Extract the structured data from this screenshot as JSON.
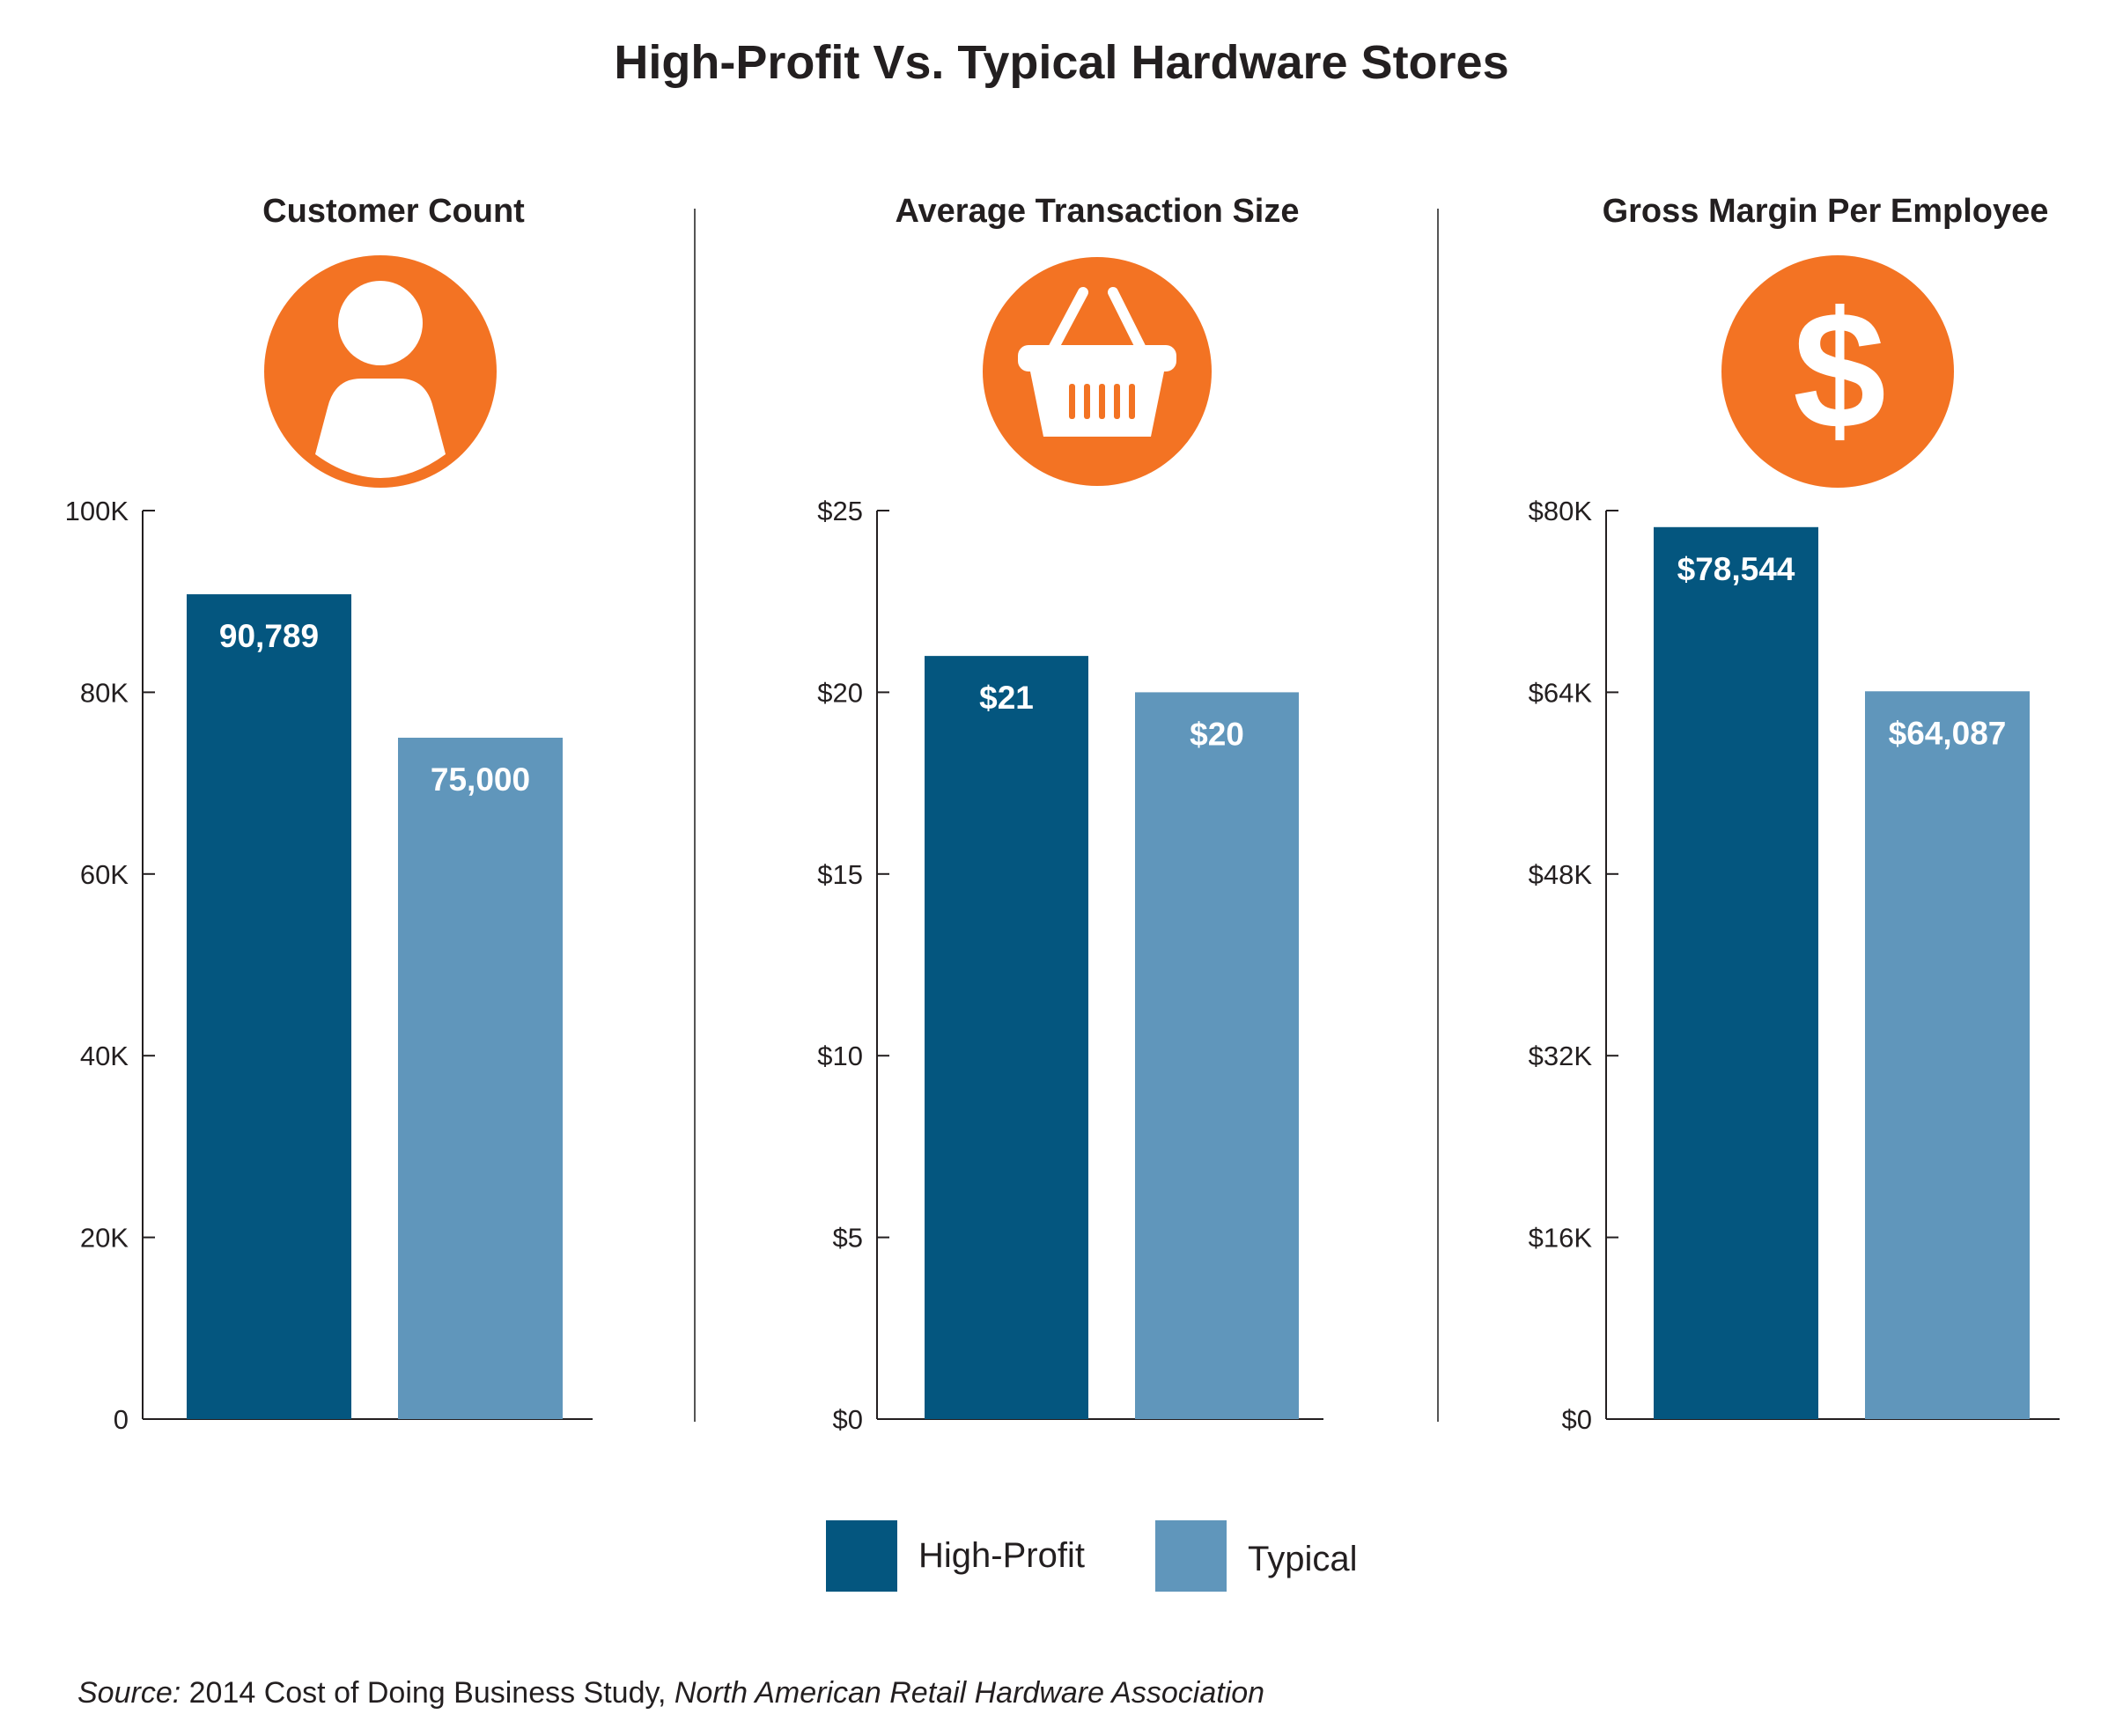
{
  "title": "High-Profit Vs. Typical Hardware Stores",
  "colors": {
    "high_profit": "#04567f",
    "typical": "#6096bb",
    "icon": "#f37323",
    "axis": "#231f20"
  },
  "legend": [
    {
      "key": "high_profit",
      "label": "High-Profit"
    },
    {
      "key": "typical",
      "label": "Typical"
    }
  ],
  "source": {
    "prefix": "Source:",
    "text": " 2014 Cost of Doing Business Study, ",
    "organization": "North American Retail Hardware Association"
  },
  "chart_data": [
    {
      "type": "bar",
      "title": "Customer Count",
      "icon": "person-icon",
      "categories": [
        "High-Profit",
        "Typical"
      ],
      "values": [
        90789,
        75000
      ],
      "value_labels": [
        "90,789",
        "75,000"
      ],
      "ylim": [
        0,
        100000
      ],
      "yticks": [
        0,
        20000,
        40000,
        60000,
        80000,
        100000
      ],
      "ytick_labels": [
        "0",
        "20K",
        "40K",
        "60K",
        "80K",
        "100K"
      ]
    },
    {
      "type": "bar",
      "title": "Average Transaction Size",
      "icon": "shopping-basket-icon",
      "categories": [
        "High-Profit",
        "Typical"
      ],
      "values": [
        21,
        20
      ],
      "value_labels": [
        "$21",
        "$20"
      ],
      "ylim": [
        0,
        25
      ],
      "yticks": [
        0,
        5,
        10,
        15,
        20,
        25
      ],
      "ytick_labels": [
        "$0",
        "$5",
        "$10",
        "$15",
        "$20",
        "$25"
      ]
    },
    {
      "type": "bar",
      "title": "Gross Margin Per Employee",
      "icon": "dollar-sign-icon",
      "categories": [
        "High-Profit",
        "Typical"
      ],
      "values": [
        78544,
        64087
      ],
      "value_labels": [
        "$78,544",
        "$64,087"
      ],
      "ylim": [
        0,
        80000
      ],
      "yticks": [
        0,
        16000,
        32000,
        48000,
        64000,
        80000
      ],
      "ytick_labels": [
        "$0",
        "$16K",
        "$32K",
        "$48K",
        "$64K",
        "$80K"
      ]
    }
  ]
}
